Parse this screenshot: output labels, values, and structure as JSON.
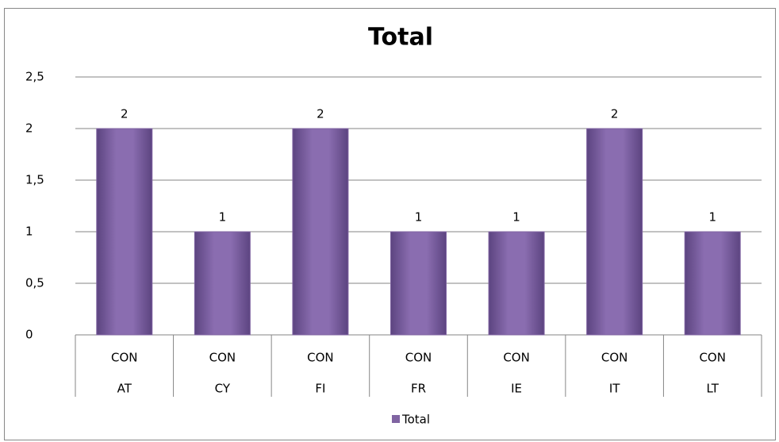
{
  "chart_data": {
    "type": "bar",
    "title": "Total",
    "categories": [
      [
        "CON",
        "AT"
      ],
      [
        "CON",
        "CY"
      ],
      [
        "CON",
        "FI"
      ],
      [
        "CON",
        "FR"
      ],
      [
        "CON",
        "IE"
      ],
      [
        "CON",
        "IT"
      ],
      [
        "CON",
        "LT"
      ]
    ],
    "series": [
      {
        "name": "Total",
        "color": "#8064a2",
        "values": [
          2,
          1,
          2,
          1,
          1,
          2,
          1
        ]
      }
    ],
    "ylim": [
      0,
      2.5
    ],
    "yticks": [
      0,
      {
        "value": 0.5,
        "label": "0,5"
      },
      1,
      {
        "value": 1.5,
        "label": "1,5"
      },
      2,
      {
        "value": 2.5,
        "label": "2,5"
      }
    ],
    "grid": true,
    "legend": "bottom"
  }
}
